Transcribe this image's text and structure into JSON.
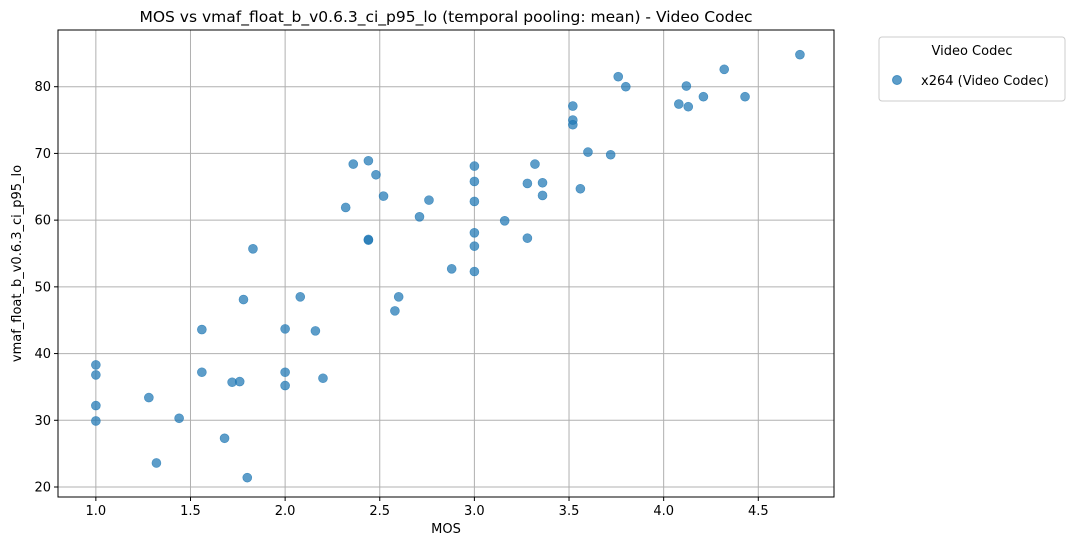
{
  "chart_data": {
    "type": "scatter",
    "title": "MOS vs vmaf_float_b_v0.6.3_ci_p95_lo (temporal pooling: mean) - Video Codec",
    "xlabel": "MOS",
    "ylabel": "vmaf_float_b_v0.6.3_ci_p95_lo",
    "xlim": [
      0.8,
      4.9
    ],
    "ylim": [
      18.5,
      88.5
    ],
    "xticks": [
      1.0,
      1.5,
      2.0,
      2.5,
      3.0,
      3.5,
      4.0,
      4.5
    ],
    "xtick_labels": [
      "1.0",
      "1.5",
      "2.0",
      "2.5",
      "3.0",
      "3.5",
      "4.0",
      "4.5"
    ],
    "yticks": [
      20,
      30,
      40,
      50,
      60,
      70,
      80
    ],
    "ytick_labels": [
      "20",
      "30",
      "40",
      "50",
      "60",
      "70",
      "80"
    ],
    "grid": true,
    "legend": {
      "title": "Video Codec",
      "placement": "outside-upper-right"
    },
    "series": [
      {
        "name": "x264 (Video Codec)",
        "color": "#1f77b4",
        "points": [
          [
            1.0,
            38.3
          ],
          [
            1.0,
            36.8
          ],
          [
            1.0,
            32.2
          ],
          [
            1.0,
            29.9
          ],
          [
            1.28,
            33.4
          ],
          [
            1.32,
            23.6
          ],
          [
            1.44,
            30.3
          ],
          [
            1.56,
            43.6
          ],
          [
            1.56,
            37.2
          ],
          [
            1.68,
            27.3
          ],
          [
            1.72,
            35.7
          ],
          [
            1.76,
            35.8
          ],
          [
            1.78,
            48.1
          ],
          [
            1.8,
            21.4
          ],
          [
            1.83,
            55.7
          ],
          [
            2.0,
            43.7
          ],
          [
            2.0,
            37.2
          ],
          [
            2.0,
            35.2
          ],
          [
            2.08,
            48.5
          ],
          [
            2.16,
            43.4
          ],
          [
            2.2,
            36.3
          ],
          [
            2.32,
            61.9
          ],
          [
            2.36,
            68.4
          ],
          [
            2.44,
            68.9
          ],
          [
            2.44,
            57.1
          ],
          [
            2.44,
            57.0
          ],
          [
            2.48,
            66.8
          ],
          [
            2.52,
            63.6
          ],
          [
            2.58,
            46.4
          ],
          [
            2.6,
            48.5
          ],
          [
            2.71,
            60.5
          ],
          [
            2.76,
            63.0
          ],
          [
            2.88,
            52.7
          ],
          [
            3.0,
            68.1
          ],
          [
            3.0,
            65.8
          ],
          [
            3.0,
            62.8
          ],
          [
            3.0,
            58.1
          ],
          [
            3.0,
            56.1
          ],
          [
            3.0,
            52.3
          ],
          [
            3.16,
            59.9
          ],
          [
            3.28,
            65.5
          ],
          [
            3.28,
            57.3
          ],
          [
            3.32,
            68.4
          ],
          [
            3.36,
            65.6
          ],
          [
            3.36,
            63.7
          ],
          [
            3.52,
            77.1
          ],
          [
            3.52,
            75.0
          ],
          [
            3.52,
            74.3
          ],
          [
            3.56,
            64.7
          ],
          [
            3.6,
            70.2
          ],
          [
            3.72,
            69.8
          ],
          [
            3.76,
            81.5
          ],
          [
            3.8,
            80.0
          ],
          [
            4.08,
            77.4
          ],
          [
            4.12,
            80.1
          ],
          [
            4.13,
            77.0
          ],
          [
            4.21,
            78.5
          ],
          [
            4.32,
            82.6
          ],
          [
            4.43,
            78.5
          ],
          [
            4.72,
            84.8
          ]
        ]
      }
    ]
  }
}
